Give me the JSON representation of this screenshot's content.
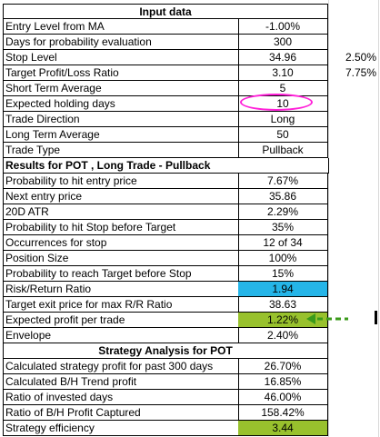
{
  "section_input": "Input data",
  "input_rows": [
    {
      "label": "Entry Level from MA",
      "value": "-1.00%",
      "extra": ""
    },
    {
      "label": "Days for probability evaluation",
      "value": "300",
      "extra": ""
    },
    {
      "label": "Stop Level",
      "value": "34.96",
      "extra": "2.50%"
    },
    {
      "label": "Target Profit/Loss Ratio",
      "value": "3.10",
      "extra": "7.75%"
    },
    {
      "label": "Short Term Average",
      "value": "5",
      "extra": ""
    },
    {
      "label": "Expected holding days",
      "value": "10",
      "extra": ""
    },
    {
      "label": "Trade Direction",
      "value": "Long",
      "extra": ""
    },
    {
      "label": "Long Term Average",
      "value": "50",
      "extra": ""
    },
    {
      "label": "Trade Type",
      "value": "Pullback",
      "extra": ""
    }
  ],
  "section_results": "Results for POT , Long Trade - Pullback",
  "result_rows": [
    {
      "label": "Probability to hit entry price",
      "value": "7.67%"
    },
    {
      "label": "Next entry price",
      "value": "35.86"
    },
    {
      "label": "20D ATR",
      "value": "2.29%"
    },
    {
      "label": "Probability to hit Stop before Target",
      "value": "35%"
    },
    {
      "label": "Occurrences for stop",
      "value": "12 of 34"
    },
    {
      "label": "Position Size",
      "value": "100%"
    },
    {
      "label": "Probability to reach Target before Stop",
      "value": "15%"
    },
    {
      "label": "Risk/Return Ratio",
      "value": "1.94"
    },
    {
      "label": "Target exit price for max R/R Ratio",
      "value": "38.63"
    },
    {
      "label": "Expected profit per trade",
      "value": "1.22%"
    },
    {
      "label": "Envelope",
      "value": "2.40%"
    }
  ],
  "section_strategy": "Strategy Analysis for POT",
  "strategy_rows": [
    {
      "label": "Calculated strategy profit for past 300 days",
      "value": "26.70%"
    },
    {
      "label": "Calculated B/H Trend profit",
      "value": "16.85%"
    },
    {
      "label": "Ratio of invested days",
      "value": "46.00%"
    },
    {
      "label": "Ratio of B/H Profit Captured",
      "value": "158.42%"
    },
    {
      "label": "Strategy efficiency",
      "value": "3.44"
    }
  ],
  "colors": {
    "risk_fill": "#25b5e8",
    "green_fill": "#98c12d",
    "highlight_oval": "#ff20d8",
    "arrow": "#3a9a1a"
  }
}
